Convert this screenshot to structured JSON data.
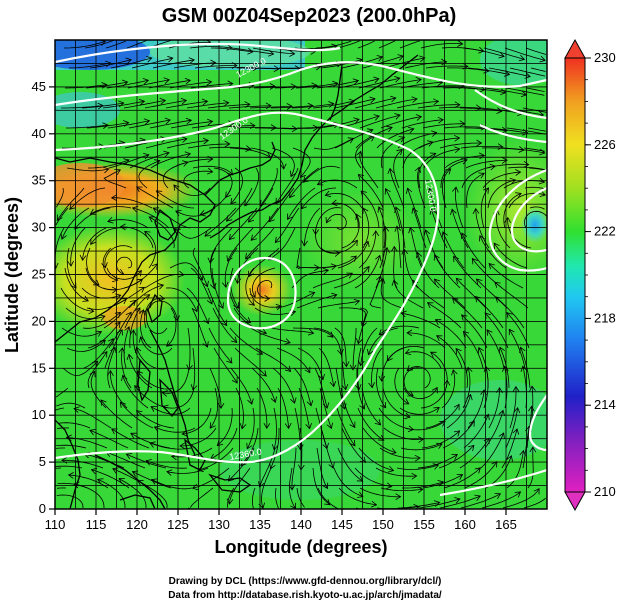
{
  "title": "GSM 00Z04Sep2023 (200.0hPa)",
  "xlabel": "Longitude (degrees)",
  "ylabel": "Latitude  (degrees)",
  "x_ticks": [
    "110",
    "115",
    "120",
    "125",
    "130",
    "135",
    "140",
    "145",
    "150",
    "155",
    "160",
    "165"
  ],
  "y_ticks": [
    "0",
    "5",
    "10",
    "15",
    "20",
    "25",
    "30",
    "35",
    "40",
    "45"
  ],
  "colorbar": {
    "min": 210,
    "max": 230,
    "ticks": [
      "210",
      "214",
      "218",
      "222",
      "226",
      "230"
    ],
    "colors": [
      "#e020c0",
      "#2020c8",
      "#20a0f0",
      "#20e8b0",
      "#30e030",
      "#a0e020",
      "#f0e020",
      "#f0a020",
      "#f04020"
    ]
  },
  "contour_labels": [
    "12300.0",
    "12300.0",
    "12300.0",
    "12360.0"
  ],
  "credits": {
    "line1": "Drawing by DCL (https://www.gfd-dennou.org/library/dcl/)",
    "line2": "Data from http://database.rish.kyoto-u.ac.jp/arch/jmadata/"
  },
  "chart_data": {
    "type": "map",
    "variable": "200.0hPa",
    "lon_range": [
      110,
      170
    ],
    "lat_range": [
      0,
      50
    ],
    "colors": {
      "cold": "#2060e0",
      "cool": "#40d8b0",
      "neutral": "#38d838",
      "warm": "#e8d020",
      "hot": "#f07020"
    }
  }
}
